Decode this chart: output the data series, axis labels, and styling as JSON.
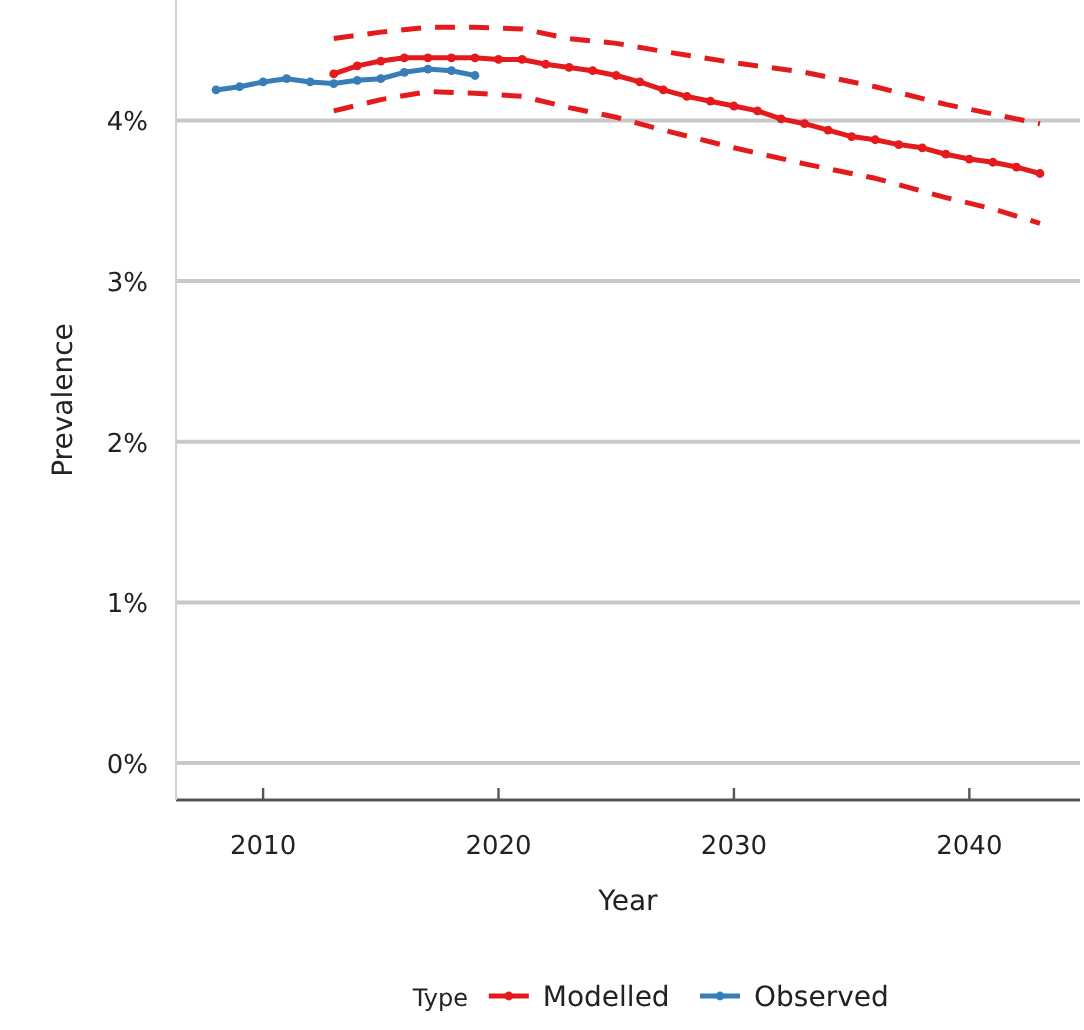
{
  "chart_data": {
    "type": "line",
    "xlabel": "Year",
    "ylabel": "Prevalence",
    "legend_title": "Type",
    "legend": "bottom",
    "grid": "y",
    "marker": "circle",
    "xlim": [
      2006.3,
      2044.7
    ],
    "xticks": [
      2010,
      2020,
      2030,
      2040
    ],
    "ylim": [
      -0.23,
      4.75
    ],
    "yticks": [
      {
        "value": 0,
        "label": "0%"
      },
      {
        "value": 1,
        "label": "1%"
      },
      {
        "value": 2,
        "label": "2%"
      },
      {
        "value": 3,
        "label": "3%"
      },
      {
        "value": 4,
        "label": "4%"
      }
    ],
    "series": [
      {
        "name": "Modelled",
        "color": "#e41a1c",
        "x": [
          2013,
          2014,
          2015,
          2016,
          2017,
          2018,
          2019,
          2020,
          2021,
          2022,
          2023,
          2024,
          2025,
          2026,
          2027,
          2028,
          2029,
          2030,
          2031,
          2032,
          2033,
          2034,
          2035,
          2036,
          2037,
          2038,
          2039,
          2040,
          2041,
          2042,
          2043
        ],
        "values": [
          4.29,
          4.34,
          4.37,
          4.39,
          4.39,
          4.39,
          4.39,
          4.38,
          4.38,
          4.35,
          4.33,
          4.31,
          4.28,
          4.24,
          4.19,
          4.15,
          4.12,
          4.09,
          4.06,
          4.01,
          3.98,
          3.94,
          3.9,
          3.88,
          3.85,
          3.83,
          3.79,
          3.76,
          3.74,
          3.71,
          3.67
        ]
      },
      {
        "name": "Observed",
        "color": "#377eb8",
        "x": [
          2008,
          2009,
          2010,
          2011,
          2012,
          2013,
          2014,
          2015,
          2016,
          2017,
          2018,
          2019
        ],
        "values": [
          4.19,
          4.21,
          4.24,
          4.26,
          4.24,
          4.23,
          4.25,
          4.26,
          4.3,
          4.32,
          4.31,
          4.28
        ]
      },
      {
        "color": "#e41a1c",
        "line_style": "dashed",
        "marker": "none",
        "x": [
          2013,
          2015,
          2017,
          2019,
          2021,
          2023,
          2025,
          2027,
          2030,
          2033,
          2036,
          2039,
          2041,
          2043
        ],
        "values": [
          4.51,
          4.55,
          4.58,
          4.58,
          4.57,
          4.51,
          4.48,
          4.43,
          4.36,
          4.3,
          4.21,
          4.1,
          4.04,
          3.98
        ]
      },
      {
        "color": "#e41a1c",
        "line_style": "dashed",
        "marker": "none",
        "x": [
          2013,
          2015,
          2017,
          2019,
          2021,
          2023,
          2025,
          2027,
          2030,
          2033,
          2036,
          2039,
          2041,
          2043
        ],
        "values": [
          4.06,
          4.13,
          4.18,
          4.17,
          4.15,
          4.08,
          4.02,
          3.94,
          3.83,
          3.73,
          3.64,
          3.52,
          3.45,
          3.36
        ]
      }
    ]
  }
}
